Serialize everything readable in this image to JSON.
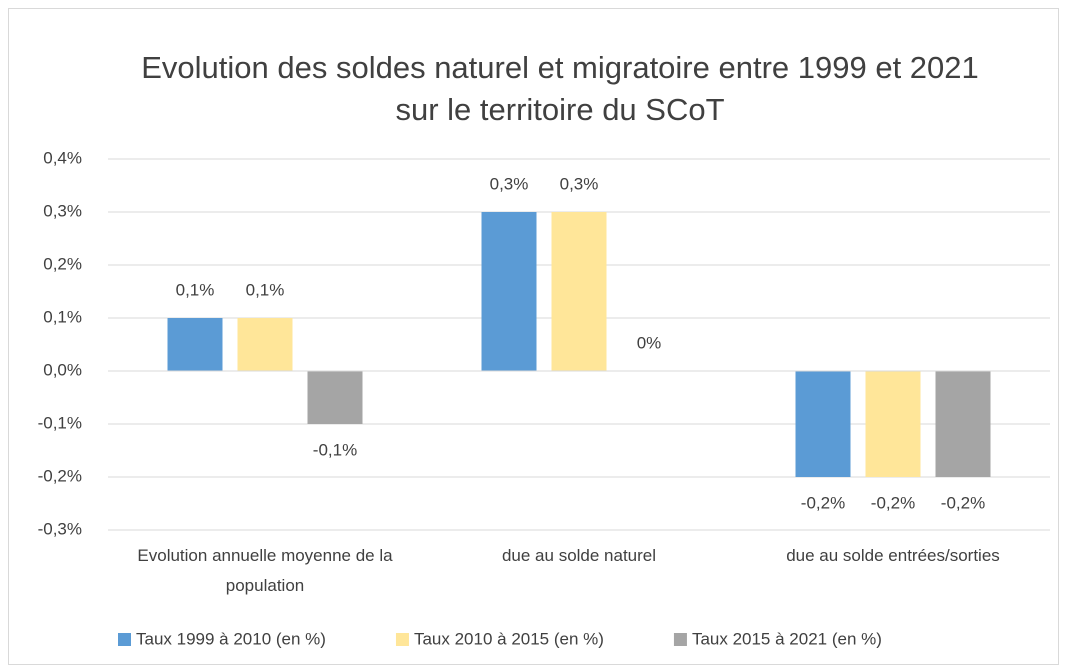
{
  "chart_data": {
    "type": "bar",
    "title": "Evolution des soldes naturel et migratoire entre 1999 et 2021 sur le territoire du SCoT",
    "categories": [
      "Evolution annuelle moyenne de la population",
      "due au solde naturel",
      "due au solde entrées/sorties"
    ],
    "series": [
      {
        "name": "Taux 1999 à 2010 (en %)",
        "color": "#5b9bd5",
        "values": [
          0.1,
          0.3,
          -0.2
        ],
        "value_labels": [
          "0,1%",
          "0,3%",
          "-0,2%"
        ]
      },
      {
        "name": "Taux 2010 à 2015 (en %)",
        "color": "#ffe699",
        "values": [
          0.1,
          0.3,
          -0.2
        ],
        "value_labels": [
          "0,1%",
          "0,3%",
          "-0,2%"
        ]
      },
      {
        "name": "Taux 2015 à 2021 (en %)",
        "color": "#a5a5a5",
        "values": [
          -0.1,
          0,
          -0.2
        ],
        "value_labels": [
          "-0,1%",
          "0%",
          "-0,2%"
        ]
      }
    ],
    "ylim": [
      -0.3,
      0.4
    ],
    "yticks": [
      {
        "value": -0.3,
        "label": "-0,3%"
      },
      {
        "value": -0.2,
        "label": "-0,2%"
      },
      {
        "value": -0.1,
        "label": "-0,1%"
      },
      {
        "value": 0,
        "label": "0,0%"
      },
      {
        "value": 0.1,
        "label": "0,1%"
      },
      {
        "value": 0.2,
        "label": "0,2%"
      },
      {
        "value": 0.3,
        "label": "0,3%"
      },
      {
        "value": 0.4,
        "label": "0,4%"
      }
    ],
    "grid": true,
    "legend": "bottom"
  }
}
